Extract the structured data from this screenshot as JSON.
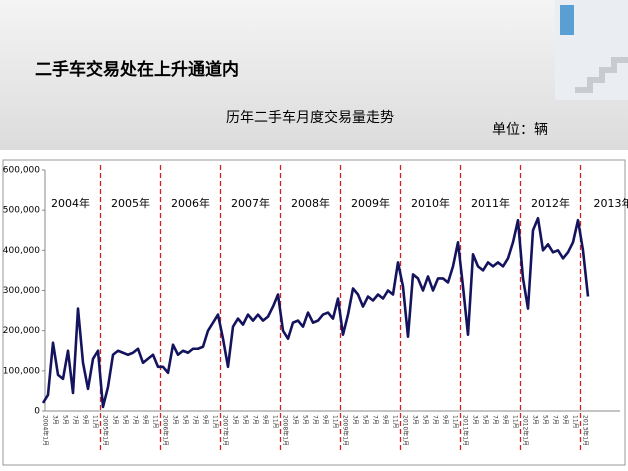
{
  "header": {
    "title": "二手车交易处在上升通道内"
  },
  "chart_data": {
    "type": "line",
    "title": "历年二手车月度交易量走势",
    "unit": "单位：辆",
    "annotations": [
      "2004年",
      "2005年",
      "2006年",
      "2007年",
      "2008年",
      "2009年",
      "2010年",
      "2011年",
      "2012年",
      "2013年"
    ],
    "categories": [
      "2004年1月",
      null,
      "3月",
      null,
      "5月",
      null,
      "7月",
      null,
      "9月",
      null,
      "11月",
      null,
      "2005年1月",
      null,
      "3月",
      null,
      "5月",
      null,
      "7月",
      null,
      "9月",
      null,
      "11月",
      null,
      "2006年1月",
      null,
      "3月",
      null,
      "5月",
      null,
      "7月",
      null,
      "9月",
      null,
      "11月",
      null,
      "2007年1月",
      null,
      "3月",
      null,
      "5月",
      null,
      "7月",
      null,
      "9月",
      null,
      "11月",
      null,
      "2008年1月",
      null,
      "3月",
      null,
      "5月",
      null,
      "7月",
      null,
      "9月",
      null,
      "11月",
      null,
      "2009年1月",
      null,
      "3月",
      null,
      "5月",
      null,
      "7月",
      null,
      "9月",
      null,
      "11月",
      null,
      "2010年1月",
      null,
      "3月",
      null,
      "5月",
      null,
      "7月",
      null,
      "9月",
      null,
      "11月",
      null,
      "2011年1月",
      null,
      "3月",
      null,
      "5月",
      null,
      "7月",
      null,
      "9月",
      null,
      "11月",
      null,
      "2012年1月",
      null,
      "3月",
      null,
      "5月",
      null,
      "7月",
      null,
      "9月",
      null,
      "11月",
      null,
      "2013年1月",
      null
    ],
    "series": [
      {
        "color": "#14145e",
        "values": [
          20000,
          40000,
          170000,
          90000,
          80000,
          150000,
          45000,
          255000,
          120000,
          55000,
          130000,
          150000,
          10000,
          60000,
          140000,
          150000,
          145000,
          140000,
          145000,
          155000,
          120000,
          130000,
          140000,
          110000,
          110000,
          95000,
          165000,
          140000,
          150000,
          145000,
          155000,
          155000,
          160000,
          200000,
          220000,
          240000,
          180000,
          110000,
          210000,
          230000,
          215000,
          240000,
          225000,
          240000,
          225000,
          235000,
          260000,
          290000,
          200000,
          180000,
          220000,
          225000,
          210000,
          245000,
          220000,
          225000,
          240000,
          245000,
          230000,
          280000,
          190000,
          240000,
          305000,
          290000,
          260000,
          285000,
          275000,
          290000,
          280000,
          300000,
          290000,
          370000,
          310000,
          185000,
          340000,
          330000,
          300000,
          335000,
          300000,
          330000,
          330000,
          320000,
          360000,
          420000,
          310000,
          190000,
          390000,
          360000,
          350000,
          370000,
          360000,
          370000,
          360000,
          380000,
          420000,
          475000,
          330000,
          255000,
          450000,
          480000,
          400000,
          415000,
          395000,
          400000,
          380000,
          395000,
          420000,
          475000,
          400000,
          285000
        ]
      }
    ],
    "ylim": [
      0,
      600000
    ],
    "yticks": [
      0,
      {
        "value": 100000,
        "label": "100,000"
      },
      {
        "value": 200000,
        "label": "200,000"
      },
      {
        "value": 300000,
        "label": "300,000"
      },
      {
        "value": 400000,
        "label": "400,000"
      },
      {
        "value": 500000,
        "label": "500,000"
      },
      {
        "value": 600000,
        "label": "600,000"
      }
    ],
    "divider_color": "#d42020"
  }
}
